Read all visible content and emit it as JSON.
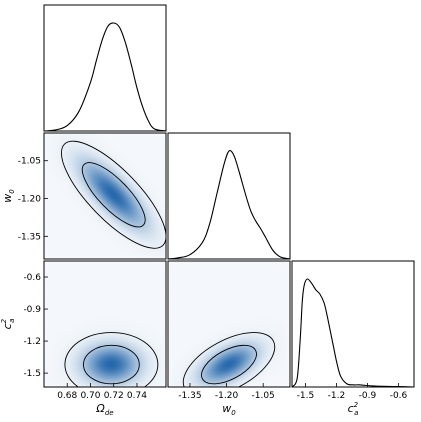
{
  "chart_data": {
    "type": "corner",
    "parameters": [
      {
        "key": "omega",
        "label": "Ω",
        "label_sub": "de",
        "label_sup": "",
        "range": [
          0.66,
          0.765
        ],
        "ticks": [
          "0.68",
          "0.70",
          "0.72",
          "0.74"
        ],
        "tick_values": [
          0.68,
          0.7,
          0.72,
          0.74
        ]
      },
      {
        "key": "w0",
        "label": "w",
        "label_sub": "0",
        "label_sup": "",
        "range": [
          -1.44,
          -0.94
        ],
        "ticks": [
          "-1.35",
          "-1.20",
          "-1.05"
        ],
        "tick_values": [
          -1.35,
          -1.2,
          -1.05
        ]
      },
      {
        "key": "ca2",
        "label": "c",
        "label_sub": "a",
        "label_sup": "2",
        "range": [
          -1.63,
          -0.45
        ],
        "ticks": [
          "-1.5",
          "-1.2",
          "-0.9",
          "-0.6"
        ],
        "tick_values": [
          -1.5,
          -1.2,
          -0.9,
          -0.6
        ]
      }
    ],
    "marginals": [
      {
        "param": "omega",
        "x": [
          0.66,
          0.67,
          0.68,
          0.69,
          0.7,
          0.705,
          0.71,
          0.715,
          0.72,
          0.725,
          0.73,
          0.735,
          0.74,
          0.745,
          0.75,
          0.755,
          0.765
        ],
        "density": [
          0.0,
          0.01,
          0.05,
          0.18,
          0.45,
          0.65,
          0.84,
          0.97,
          1.0,
          0.96,
          0.82,
          0.62,
          0.4,
          0.22,
          0.09,
          0.02,
          0.0
        ]
      },
      {
        "param": "w0",
        "x": [
          -1.44,
          -1.4,
          -1.35,
          -1.3,
          -1.27,
          -1.24,
          -1.21,
          -1.19,
          -1.17,
          -1.15,
          -1.12,
          -1.1,
          -1.08,
          -1.06,
          -1.04,
          -1.01,
          -0.98,
          -0.94
        ],
        "density": [
          0.0,
          0.01,
          0.04,
          0.15,
          0.32,
          0.6,
          0.88,
          1.0,
          0.96,
          0.82,
          0.58,
          0.44,
          0.35,
          0.28,
          0.2,
          0.08,
          0.02,
          0.0
        ]
      },
      {
        "param": "ca2",
        "x": [
          -1.63,
          -1.58,
          -1.55,
          -1.53,
          -1.51,
          -1.48,
          -1.44,
          -1.4,
          -1.36,
          -1.32,
          -1.29,
          -1.26,
          -1.23,
          -1.2,
          -1.16,
          -1.1,
          -1.04,
          -0.98,
          -0.92,
          -0.85,
          -0.75,
          -0.6,
          -0.45
        ],
        "density": [
          0.0,
          0.08,
          0.45,
          0.8,
          0.95,
          1.0,
          0.96,
          0.9,
          0.86,
          0.78,
          0.66,
          0.52,
          0.38,
          0.24,
          0.1,
          0.03,
          0.02,
          0.02,
          0.015,
          0.01,
          0.006,
          0.004,
          0.0
        ]
      }
    ],
    "joint": [
      {
        "x": "omega",
        "y": "w0",
        "center": [
          0.72,
          -1.185
        ],
        "sigma_x": 0.018,
        "sigma_y": 0.085,
        "correlation": -0.78,
        "contour_levels_sigma": [
          1.5,
          2.5
        ]
      },
      {
        "x": "omega",
        "y": "ca2",
        "center": [
          0.718,
          -1.42
        ],
        "sigma_x": 0.016,
        "sigma_y": 0.12,
        "correlation": 0.0,
        "contour_levels_sigma": [
          1.5,
          2.5
        ]
      },
      {
        "x": "w0",
        "y": "ca2",
        "center": [
          -1.19,
          -1.42
        ],
        "sigma_x": 0.075,
        "sigma_y": 0.12,
        "correlation": 0.55,
        "contour_levels_sigma": [
          1.5,
          2.5
        ]
      }
    ],
    "colors": {
      "density": "#1f6fb5",
      "line": "#000000",
      "background": "#ffffff"
    },
    "grid": false,
    "legend": "none"
  }
}
